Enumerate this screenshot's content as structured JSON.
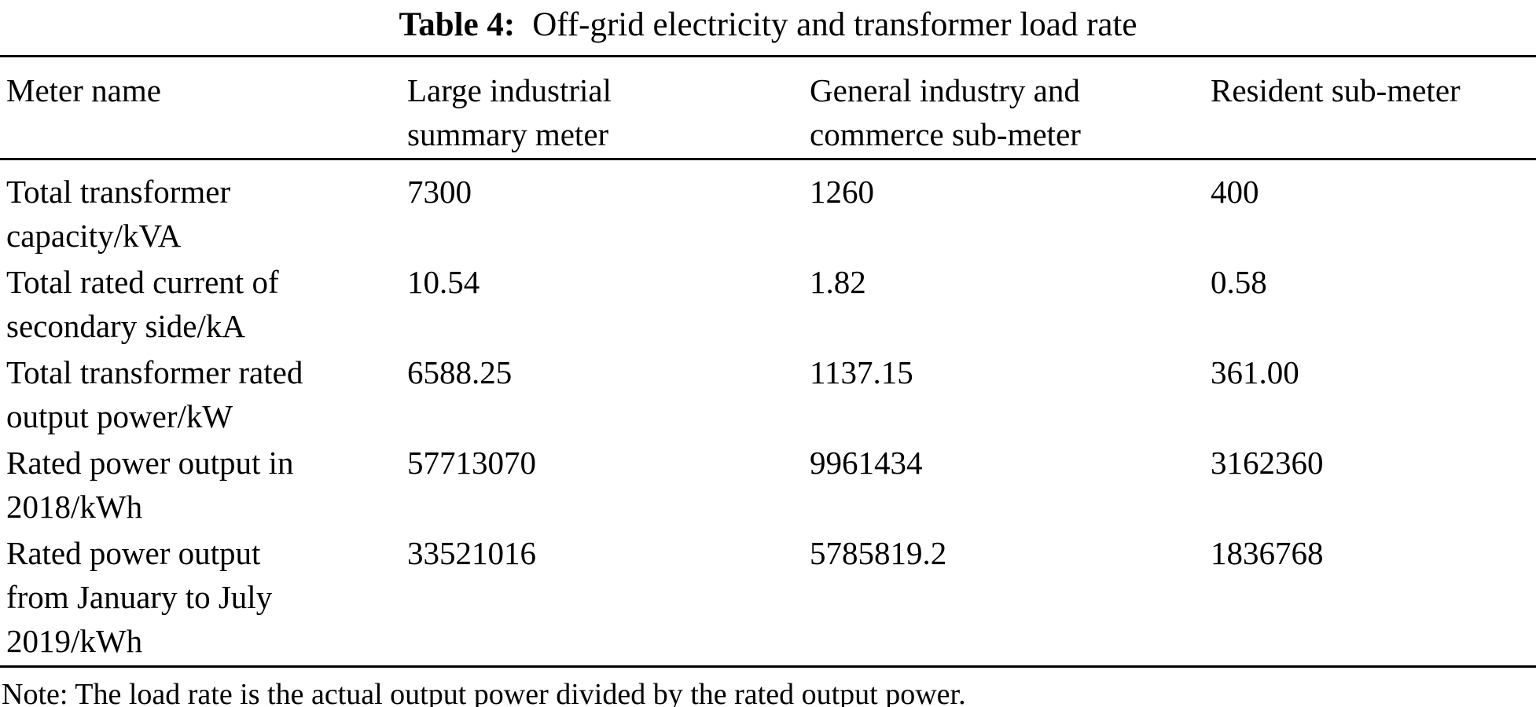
{
  "caption": {
    "label": "Table 4:",
    "text": "Off-grid electricity and transformer load rate"
  },
  "table": {
    "columns": [
      "Meter name",
      "Large industrial\nsummary meter",
      "General industry and\ncommerce sub-meter",
      "Resident sub-meter"
    ],
    "rows": [
      {
        "label": "Total transformer\ncapacity/kVA",
        "values": [
          "7300",
          "1260",
          "400"
        ]
      },
      {
        "label": "Total rated current of\nsecondary side/kA",
        "values": [
          "10.54",
          "1.82",
          "0.58"
        ]
      },
      {
        "label": "Total transformer rated\noutput power/kW",
        "values": [
          "6588.25",
          "1137.15",
          "361.00"
        ]
      },
      {
        "label": "Rated power output in\n2018/kWh",
        "values": [
          "57713070",
          "9961434",
          "3162360"
        ]
      },
      {
        "label": "Rated power output\nfrom January to July\n2019/kWh",
        "values": [
          "33521016",
          "5785819.2",
          "1836768"
        ]
      }
    ]
  },
  "note": "Note: The load rate is the actual output power divided by the rated output power.",
  "colors": {
    "text": "#000000",
    "rule": "#000000",
    "background": "#ffffff"
  }
}
